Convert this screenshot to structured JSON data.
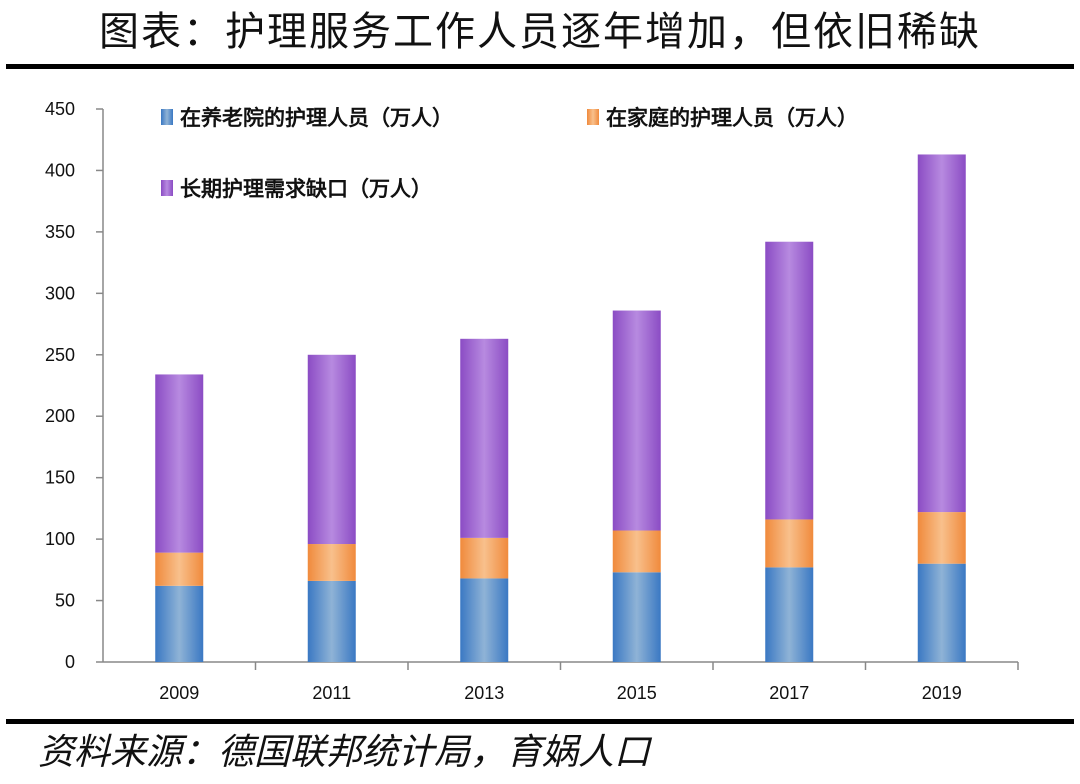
{
  "header": {
    "title": "图表：护理服务工作人员逐年增加，但依旧稀缺"
  },
  "footer": {
    "source": "资料来源：德国联邦统计局，育娲人口"
  },
  "colors": {
    "series": [
      "#3a78c3",
      "#f08a3c",
      "#8b4cc4"
    ],
    "series_light": [
      "#8fb3d6",
      "#f8c08c",
      "#b78ae0"
    ]
  },
  "chart_data": {
    "type": "bar",
    "stacked": true,
    "categories": [
      "2009",
      "2011",
      "2013",
      "2015",
      "2017",
      "2019"
    ],
    "series": [
      {
        "name": "在养老院的护理人员（万人）",
        "values": [
          62,
          66,
          68,
          73,
          77,
          80
        ]
      },
      {
        "name": "在家庭的护理人员（万人）",
        "values": [
          27,
          30,
          33,
          34,
          39,
          42
        ]
      },
      {
        "name": "长期护理需求缺口（万人）",
        "values": [
          145,
          154,
          162,
          179,
          226,
          291
        ]
      }
    ],
    "ylim": [
      0,
      450
    ],
    "yticks": [
      0,
      50,
      100,
      150,
      200,
      250,
      300,
      350,
      400,
      450
    ],
    "grid": false,
    "legend": "top-left"
  }
}
